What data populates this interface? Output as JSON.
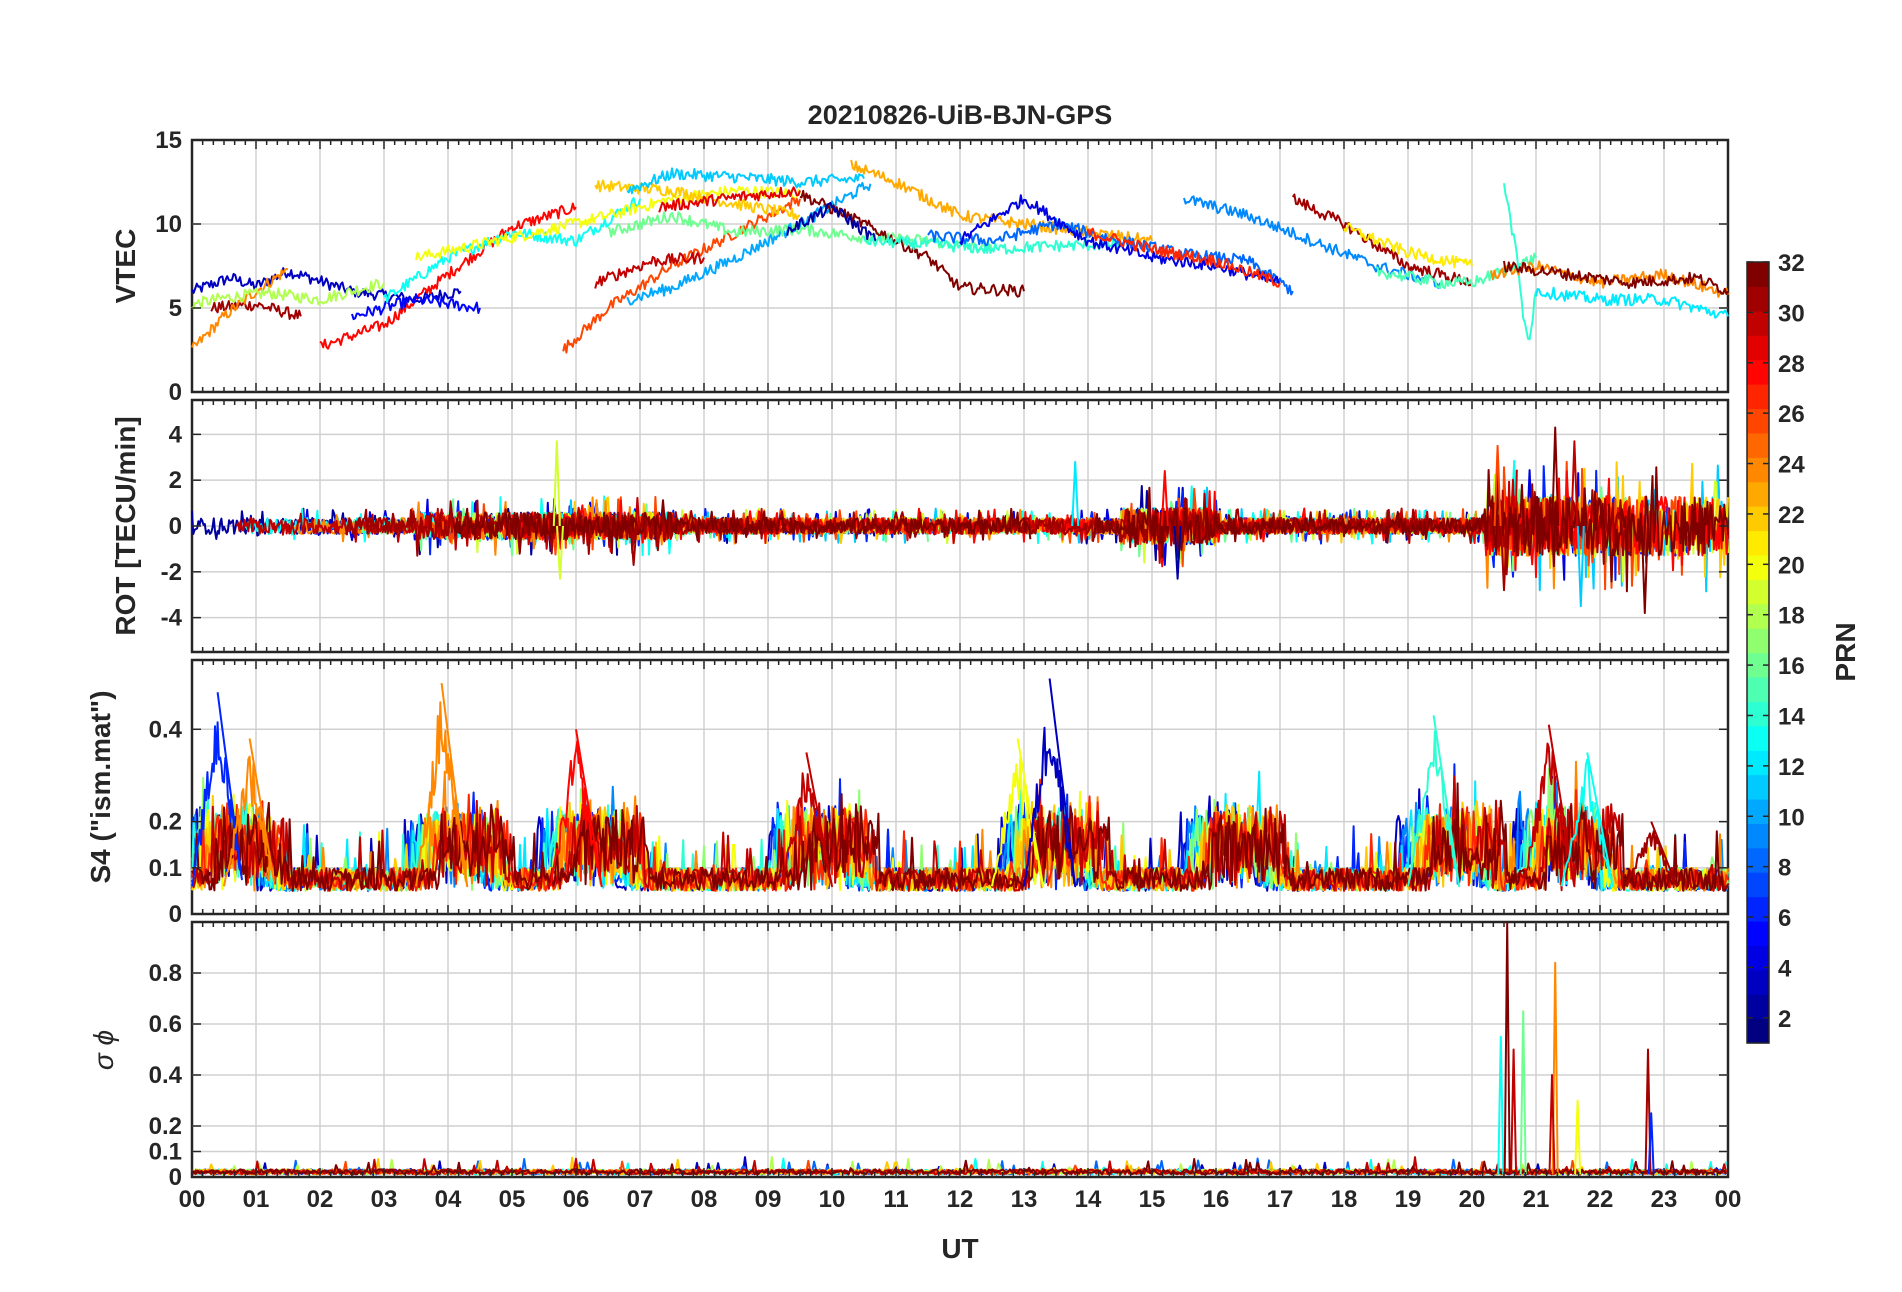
{
  "figure_title": "20210826-UiB-BJN-GPS",
  "chart_data": [
    {
      "type": "line",
      "panel": "vtec",
      "title": "20210826-UiB-BJN-GPS",
      "ylabel": "VTEC",
      "ylim": [
        0,
        15
      ],
      "yticks": [
        0,
        5,
        10,
        15
      ],
      "ytick_labels": [
        "0",
        "5",
        "10",
        "15"
      ],
      "xlim": [
        0,
        24
      ],
      "grid": true,
      "series": [
        {
          "prn": 3,
          "x": [
            0,
            0.6,
            1.0,
            1.5,
            2.5,
            3.5,
            4.2
          ],
          "y": [
            6.0,
            6.8,
            6.3,
            7.2,
            6.0,
            5.5,
            6.0
          ]
        },
        {
          "prn": 31,
          "x": [
            0.3,
            1.0,
            1.7
          ],
          "y": [
            5.0,
            5.2,
            4.5
          ]
        },
        {
          "prn": 24,
          "x": [
            0,
            0.5,
            1.0,
            1.5
          ],
          "y": [
            2.5,
            4.5,
            6.0,
            7.3
          ]
        },
        {
          "prn": 18,
          "x": [
            0,
            0.5,
            1.2,
            2.0,
            3.0
          ],
          "y": [
            5.2,
            5.6,
            5.9,
            5.5,
            6.5
          ]
        },
        {
          "prn": 28,
          "x": [
            2.0,
            3.0,
            4.0,
            5.0,
            6.0
          ],
          "y": [
            2.7,
            4.0,
            7.0,
            9.8,
            11.0
          ]
        },
        {
          "prn": 5,
          "x": [
            2.5,
            3.5,
            4.5
          ],
          "y": [
            4.5,
            5.5,
            5.0
          ]
        },
        {
          "prn": 13,
          "x": [
            3.0,
            4.0,
            5.0,
            6.0,
            7.0
          ],
          "y": [
            5.5,
            8.0,
            9.5,
            9.0,
            11.5
          ]
        },
        {
          "prn": 20,
          "x": [
            3.5,
            4.5,
            5.5,
            6.5,
            7.5,
            8.5,
            9.5
          ],
          "y": [
            8.0,
            8.8,
            9.6,
            10.5,
            11.5,
            12.0,
            11.8
          ]
        },
        {
          "prn": 26,
          "x": [
            5.8,
            6.5,
            7.5,
            8.5,
            9.5
          ],
          "y": [
            2.5,
            5.0,
            7.5,
            9.5,
            11.5
          ]
        },
        {
          "prn": 22,
          "x": [
            6.3,
            7.5,
            8.5,
            9.5
          ],
          "y": [
            12.3,
            12.0,
            11.2,
            10.5
          ]
        },
        {
          "prn": 11,
          "x": [
            6.8,
            7.5,
            8.5,
            9.5,
            10.5
          ],
          "y": [
            12.0,
            13.0,
            12.8,
            12.5,
            12.7
          ]
        },
        {
          "prn": 10,
          "x": [
            6.8,
            7.5,
            8.5,
            9.5,
            10.6
          ],
          "y": [
            5.5,
            6.2,
            8.0,
            10.0,
            12.4
          ]
        },
        {
          "prn": 16,
          "x": [
            6.5,
            7.5,
            8.5,
            9.5,
            10.5,
            11.5,
            12.5
          ],
          "y": [
            9.5,
            10.5,
            9.5,
            9.7,
            9.2,
            9.0,
            8.5
          ]
        },
        {
          "prn": 30,
          "x": [
            6.3,
            7.2,
            8.0
          ],
          "y": [
            6.5,
            7.8,
            8.0
          ]
        },
        {
          "prn": 29,
          "x": [
            7.3,
            8.5,
            9.5
          ],
          "y": [
            11.0,
            11.6,
            12.0
          ]
        },
        {
          "prn": 32,
          "x": [
            9.5,
            10.5,
            11.5,
            12.0,
            13.0
          ],
          "y": [
            11.8,
            10.0,
            8.0,
            6.2,
            6.0
          ]
        },
        {
          "prn": 2,
          "x": [
            9.3,
            10.0,
            10.7
          ],
          "y": [
            9.6,
            11.0,
            9.0
          ]
        },
        {
          "prn": 23,
          "x": [
            10.3,
            11.0,
            12.0,
            13.0,
            14.0,
            15.0
          ],
          "y": [
            13.5,
            12.5,
            10.5,
            10.0,
            9.5,
            9.0
          ]
        },
        {
          "prn": 14,
          "x": [
            10.5,
            11.5,
            12.5,
            13.5,
            14.5
          ],
          "y": [
            9.0,
            8.8,
            8.5,
            8.7,
            8.8
          ]
        },
        {
          "prn": 8,
          "x": [
            11.5,
            12.5,
            13.5,
            14.5,
            15.5,
            16.5,
            17.2
          ],
          "y": [
            9.3,
            9.0,
            10.0,
            9.0,
            8.2,
            7.8,
            6.0
          ]
        },
        {
          "prn": 4,
          "x": [
            12.0,
            13.0,
            14.0,
            15.0,
            16.0,
            17.0
          ],
          "y": [
            9.0,
            11.5,
            9.0,
            8.0,
            7.5,
            6.5
          ]
        },
        {
          "prn": 27,
          "x": [
            14.0,
            15.0,
            16.0,
            17.0
          ],
          "y": [
            9.5,
            8.5,
            7.8,
            6.5
          ]
        },
        {
          "prn": 9,
          "x": [
            15.5,
            16.5,
            17.5,
            18.5,
            19.5
          ],
          "y": [
            11.5,
            10.5,
            9.0,
            7.5,
            6.5
          ]
        },
        {
          "prn": 31,
          "x": [
            17.2,
            18.0,
            19.0,
            20.0
          ],
          "y": [
            11.5,
            10.0,
            7.5,
            6.5
          ]
        },
        {
          "prn": 21,
          "x": [
            18.0,
            19.0,
            20.0
          ],
          "y": [
            9.8,
            8.3,
            7.5
          ]
        },
        {
          "prn": 15,
          "x": [
            18.5,
            19.5,
            20.0,
            20.5,
            21.0
          ],
          "y": [
            7.2,
            6.5,
            6.5,
            7.2,
            8.0
          ]
        },
        {
          "prn": 14,
          "x": [
            20.5,
            20.7,
            20.8,
            20.9,
            21.0
          ],
          "y": [
            12.5,
            8.0,
            4.5,
            3.0,
            6.0
          ]
        },
        {
          "prn": 24,
          "x": [
            20.3,
            21.0,
            22.0,
            23.0,
            24.0
          ],
          "y": [
            7.0,
            7.5,
            6.5,
            7.0,
            5.8
          ]
        },
        {
          "prn": 32,
          "x": [
            20.5,
            21.5,
            22.5,
            23.5,
            24.0
          ],
          "y": [
            7.5,
            7.0,
            6.5,
            6.8,
            6.0
          ]
        },
        {
          "prn": 12,
          "x": [
            21.0,
            22.0,
            23.0,
            24.0
          ],
          "y": [
            6.0,
            5.5,
            5.5,
            4.5
          ]
        }
      ]
    },
    {
      "type": "line",
      "panel": "rot",
      "ylabel": "ROT [TECU/min]",
      "ylim": [
        -5.5,
        5.5
      ],
      "yticks": [
        -4,
        -2,
        0,
        2,
        4
      ],
      "ytick_labels": [
        "-4",
        "-2",
        "0",
        "2",
        "4"
      ],
      "xlim": [
        0,
        24
      ],
      "grid": true,
      "spikes": [
        {
          "prn": 19,
          "x": 5.7,
          "y": 3.7
        },
        {
          "prn": 19,
          "x": 5.75,
          "y": -2.3
        },
        {
          "prn": 31,
          "x": 6.9,
          "y": -1.7
        },
        {
          "prn": 12,
          "x": 13.8,
          "y": 2.8
        },
        {
          "prn": 28,
          "x": 15.2,
          "y": 2.4
        },
        {
          "prn": 2,
          "x": 15.4,
          "y": -2.3
        },
        {
          "prn": 26,
          "x": 20.4,
          "y": 3.5
        },
        {
          "prn": 31,
          "x": 20.5,
          "y": -2.8
        },
        {
          "prn": 32,
          "x": 21.3,
          "y": 4.3
        },
        {
          "prn": 30,
          "x": 21.6,
          "y": 3.7
        },
        {
          "prn": 11,
          "x": 21.7,
          "y": -3.5
        },
        {
          "prn": 32,
          "x": 22.7,
          "y": -3.8
        }
      ]
    },
    {
      "type": "line",
      "panel": "s4",
      "ylabel": "S4 (\"ism.mat\")",
      "ylim": [
        0,
        0.55
      ],
      "yticks": [
        0,
        0.1,
        0.2,
        0.4
      ],
      "ytick_labels": [
        "0",
        "0.1",
        "0.2",
        "0.4"
      ],
      "xlim": [
        0,
        24
      ],
      "grid": true,
      "peaks": [
        {
          "prn": 6,
          "x": 0.4,
          "y": 0.48
        },
        {
          "prn": 24,
          "x": 0.9,
          "y": 0.38
        },
        {
          "prn": 24,
          "x": 3.9,
          "y": 0.5
        },
        {
          "prn": 28,
          "x": 6.0,
          "y": 0.4
        },
        {
          "prn": 30,
          "x": 9.6,
          "y": 0.35
        },
        {
          "prn": 20,
          "x": 12.9,
          "y": 0.38
        },
        {
          "prn": 3,
          "x": 13.4,
          "y": 0.51
        },
        {
          "prn": 14,
          "x": 19.4,
          "y": 0.43
        },
        {
          "prn": 30,
          "x": 21.2,
          "y": 0.41
        },
        {
          "prn": 13,
          "x": 21.8,
          "y": 0.35
        },
        {
          "prn": 31,
          "x": 22.8,
          "y": 0.2
        }
      ]
    },
    {
      "type": "line",
      "panel": "sigma_phi",
      "ylabel": "σ ϕ",
      "ylim": [
        0,
        1
      ],
      "yticks": [
        0,
        0.1,
        0.2,
        0.4,
        0.6,
        0.8
      ],
      "ytick_labels": [
        "0",
        "0.1",
        "0.2",
        "0.4",
        "0.6",
        "0.8"
      ],
      "xlim": [
        0,
        24
      ],
      "grid": true,
      "xlabel": "UT",
      "xtick_labels": [
        "00",
        "01",
        "02",
        "03",
        "04",
        "05",
        "06",
        "07",
        "08",
        "09",
        "10",
        "11",
        "12",
        "13",
        "14",
        "15",
        "16",
        "17",
        "18",
        "19",
        "20",
        "21",
        "22",
        "23",
        "00"
      ],
      "spikes": [
        {
          "prn": 13,
          "x": 20.45,
          "y": 0.55
        },
        {
          "prn": 32,
          "x": 20.55,
          "y": 1.0
        },
        {
          "prn": 30,
          "x": 20.65,
          "y": 0.5
        },
        {
          "prn": 16,
          "x": 20.8,
          "y": 0.65
        },
        {
          "prn": 24,
          "x": 21.3,
          "y": 0.84
        },
        {
          "prn": 30,
          "x": 21.25,
          "y": 0.4
        },
        {
          "prn": 20,
          "x": 21.65,
          "y": 0.3
        },
        {
          "prn": 31,
          "x": 22.75,
          "y": 0.5
        },
        {
          "prn": 6,
          "x": 22.8,
          "y": 0.25
        }
      ]
    }
  ],
  "colorbar": {
    "label": "PRN",
    "range": [
      1,
      32
    ],
    "tick_labels": [
      "2",
      "4",
      "6",
      "8",
      "10",
      "12",
      "14",
      "16",
      "18",
      "20",
      "22",
      "24",
      "26",
      "28",
      "30",
      "32"
    ]
  }
}
